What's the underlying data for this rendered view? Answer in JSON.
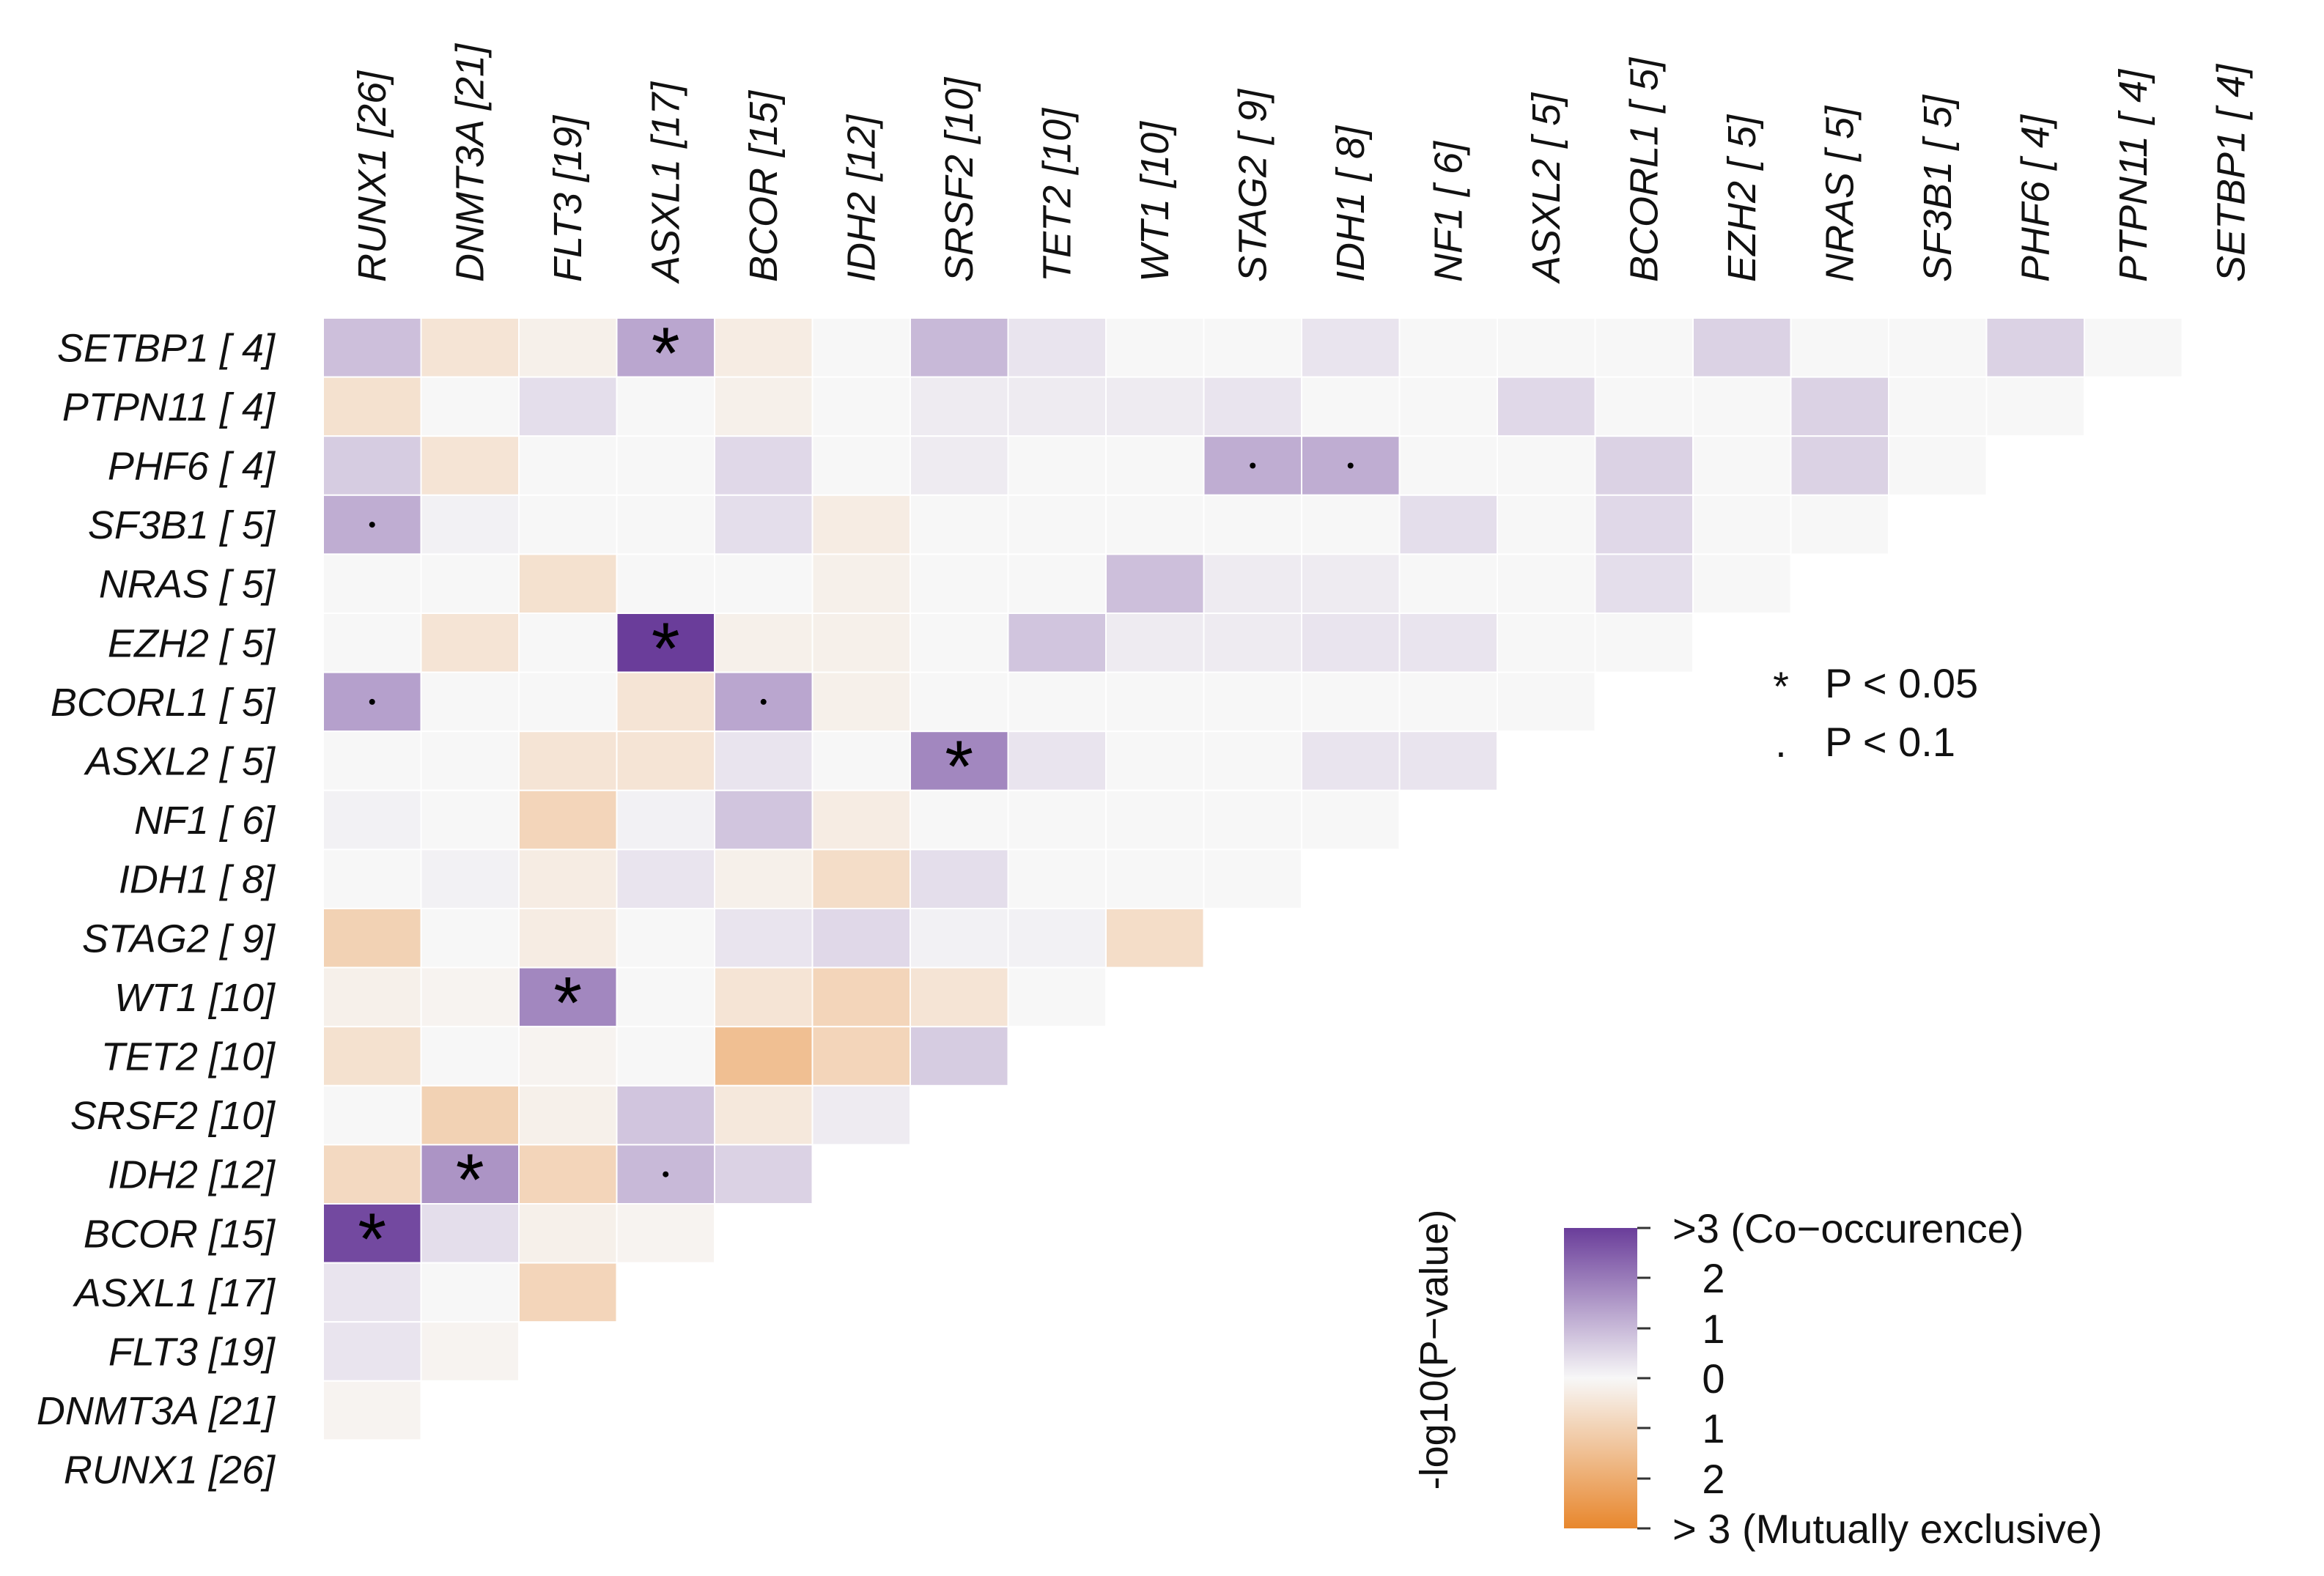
{
  "chart_data": {
    "type": "heatmap",
    "title": "",
    "genes": [
      {
        "name": "RUNX1",
        "count": 26
      },
      {
        "name": "DNMT3A",
        "count": 21
      },
      {
        "name": "FLT3",
        "count": 19
      },
      {
        "name": "ASXL1",
        "count": 17
      },
      {
        "name": "BCOR",
        "count": 15
      },
      {
        "name": "IDH2",
        "count": 12
      },
      {
        "name": "SRSF2",
        "count": 10
      },
      {
        "name": "TET2",
        "count": 10
      },
      {
        "name": "WT1",
        "count": 10
      },
      {
        "name": "STAG2",
        "count": 9
      },
      {
        "name": "IDH1",
        "count": 8
      },
      {
        "name": "NF1",
        "count": 6
      },
      {
        "name": "ASXL2",
        "count": 5
      },
      {
        "name": "BCORL1",
        "count": 5
      },
      {
        "name": "EZH2",
        "count": 5
      },
      {
        "name": "NRAS",
        "count": 5
      },
      {
        "name": "SF3B1",
        "count": 5
      },
      {
        "name": "PHF6",
        "count": 4
      },
      {
        "name": "PTPN11",
        "count": 4
      },
      {
        "name": "SETBP1",
        "count": 4
      }
    ],
    "column_labels": [
      "RUNX1 [26]",
      "DNMT3A [21]",
      "FLT3 [19]",
      "ASXL1 [17]",
      "BCOR [15]",
      "IDH2 [12]",
      "SRSF2 [10]",
      "TET2 [10]",
      "WT1 [10]",
      "STAG2 [ 9]",
      "IDH1 [ 8]",
      "NF1 [ 6]",
      "ASXL2 [ 5]",
      "BCORL1 [ 5]",
      "EZH2 [ 5]",
      "NRAS [ 5]",
      "SF3B1 [ 5]",
      "PHF6 [ 4]",
      "PTPN11 [ 4]",
      "SETBP1 [ 4]"
    ],
    "row_labels": [
      "SETBP1 [ 4]",
      "PTPN11 [ 4]",
      "PHF6 [ 4]",
      "SF3B1 [ 5]",
      "NRAS [ 5]",
      "EZH2 [ 5]",
      "BCORL1 [ 5]",
      "ASXL2 [ 5]",
      "NF1 [ 6]",
      "IDH1 [ 8]",
      "STAG2 [ 9]",
      "WT1 [10]",
      "TET2 [10]",
      "SRSF2 [10]",
      "IDH2 [12]",
      "BCOR [15]",
      "ASXL1 [17]",
      "FLT3 [19]",
      "DNMT3A [21]",
      "RUNX1 [26]"
    ],
    "value_note": "signed -log10(P-value): positive = co-occurrence, negative = mutual exclusivity; rows follow row_labels order, each row lists columns in column_labels order",
    "values": [
      [
        0.9,
        -0.5,
        -0.2,
        1.3,
        -0.3,
        0,
        1.0,
        0.3,
        0,
        0,
        0.3,
        0,
        0,
        0,
        0.6,
        0,
        0,
        0.6,
        0
      ],
      [
        -0.6,
        0,
        0.4,
        0,
        -0.2,
        0,
        0.2,
        0.2,
        0.2,
        0.3,
        0,
        0,
        0.5,
        0,
        0,
        0.6,
        0,
        0
      ],
      [
        0.7,
        -0.5,
        0,
        0,
        0.5,
        0,
        0.2,
        0,
        0,
        1.2,
        1.2,
        0,
        0,
        0.6,
        0,
        0.6,
        0
      ],
      [
        1.2,
        0.1,
        0,
        0,
        0.4,
        -0.3,
        0,
        0,
        0,
        0,
        0,
        0.4,
        0,
        0.5,
        0,
        0
      ],
      [
        0,
        0,
        -0.6,
        0,
        0,
        -0.2,
        0,
        0,
        0.9,
        0.2,
        0.2,
        0,
        0,
        0.4,
        0
      ],
      [
        0,
        -0.5,
        0,
        3.2,
        -0.2,
        -0.2,
        0,
        0.8,
        0.2,
        0.2,
        0.3,
        0.3,
        0,
        0
      ],
      [
        1.4,
        0,
        0,
        -0.5,
        1.3,
        -0.2,
        0,
        0,
        0,
        0,
        0,
        0,
        0
      ],
      [
        0,
        0,
        -0.5,
        -0.5,
        0.3,
        0,
        1.8,
        0.3,
        0,
        0,
        0.3,
        0.3
      ],
      [
        0.1,
        0,
        -0.9,
        0.1,
        0.8,
        -0.3,
        0,
        0,
        0,
        0,
        0
      ],
      [
        0,
        0.1,
        -0.3,
        0.3,
        -0.2,
        -0.7,
        0.4,
        0,
        0,
        0
      ],
      [
        -1.0,
        0,
        -0.3,
        0,
        0.3,
        0.5,
        0.1,
        0.1,
        -0.7
      ],
      [
        -0.2,
        -0.1,
        1.8,
        0,
        -0.5,
        -0.9,
        -0.5,
        0
      ],
      [
        -0.6,
        0,
        -0.1,
        0,
        -1.5,
        -0.9,
        0.7
      ],
      [
        0,
        -1.0,
        -0.2,
        0.8,
        -0.4,
        0.2
      ],
      [
        -0.8,
        1.6,
        -0.9,
        1.0,
        0.6
      ],
      [
        2.8,
        0.4,
        -0.2,
        -0.1
      ],
      [
        0.3,
        0,
        -0.9
      ],
      [
        0.3,
        -0.1
      ],
      [
        -0.1
      ],
      []
    ],
    "significance": [
      {
        "row": "SETBP1 [ 4]",
        "col": "ASXL1 [17]",
        "mark": "*"
      },
      {
        "row": "PHF6 [ 4]",
        "col": "STAG2 [ 9]",
        "mark": "."
      },
      {
        "row": "PHF6 [ 4]",
        "col": "IDH1 [ 8]",
        "mark": "."
      },
      {
        "row": "SF3B1 [ 5]",
        "col": "RUNX1 [26]",
        "mark": "."
      },
      {
        "row": "EZH2 [ 5]",
        "col": "ASXL1 [17]",
        "mark": "*"
      },
      {
        "row": "BCORL1 [ 5]",
        "col": "RUNX1 [26]",
        "mark": "."
      },
      {
        "row": "BCORL1 [ 5]",
        "col": "BCOR [15]",
        "mark": "."
      },
      {
        "row": "ASXL2 [ 5]",
        "col": "SRSF2 [10]",
        "mark": "*"
      },
      {
        "row": "WT1 [10]",
        "col": "FLT3 [19]",
        "mark": "*"
      },
      {
        "row": "IDH2 [12]",
        "col": "DNMT3A [21]",
        "mark": "*"
      },
      {
        "row": "IDH2 [12]",
        "col": "ASXL1 [17]",
        "mark": "."
      },
      {
        "row": "BCOR [15]",
        "col": "RUNX1 [26]",
        "mark": "*"
      }
    ],
    "legend": {
      "significance": [
        {
          "symbol": "*",
          "label": "P < 0.05"
        },
        {
          "symbol": "·",
          "label": "P < 0.1"
        }
      ],
      "colorbar": {
        "title": "-log10(P−value)",
        "ticks": [
          ">3 (Co−occurence)",
          "2",
          "1",
          "0",
          "1",
          "2",
          "> 3 (Mutually exclusive)"
        ],
        "range": [
          -3,
          3
        ],
        "co_occurrence_color": "#6a3d9a",
        "mutual_exclusive_color": "#e8872d",
        "neutral_color": "#f7f7f7"
      }
    }
  }
}
